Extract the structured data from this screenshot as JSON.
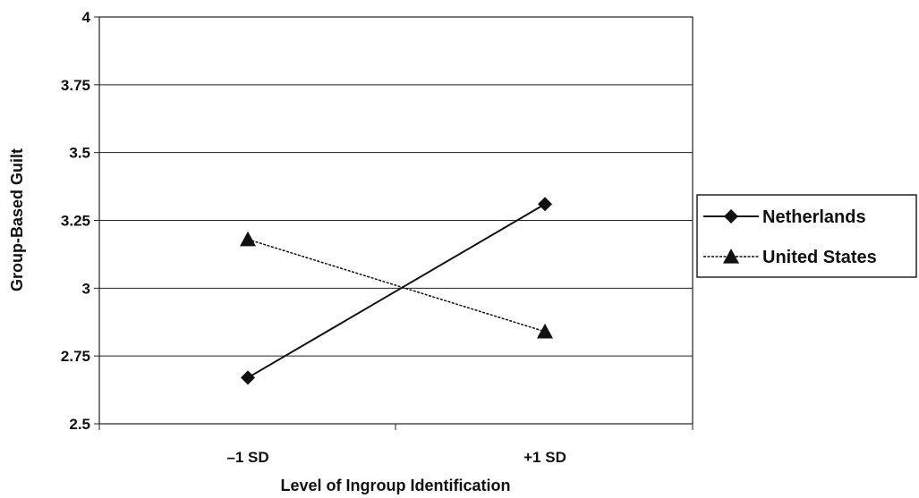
{
  "chart_data": {
    "type": "line",
    "title": "",
    "xlabel": "Level of Ingroup Identification",
    "ylabel": "Group-Based Guilt",
    "categories": [
      "–1 SD",
      "+1 SD"
    ],
    "ylim": [
      2.5,
      4
    ],
    "yticks": [
      2.5,
      2.75,
      3,
      3.25,
      3.5,
      3.75,
      4
    ],
    "ytick_labels": [
      "2.5",
      "2.75",
      "3",
      "3.25",
      "3.5",
      "3.75",
      "4"
    ],
    "grid": "horizontal",
    "legend_position": "right",
    "series": [
      {
        "name": "Netherlands",
        "values": [
          2.67,
          3.31
        ],
        "marker": "diamond",
        "line_style": "solid",
        "color": "#111111"
      },
      {
        "name": "United States",
        "values": [
          3.18,
          2.84
        ],
        "marker": "triangle",
        "line_style": "dashed",
        "color": "#111111"
      }
    ]
  }
}
